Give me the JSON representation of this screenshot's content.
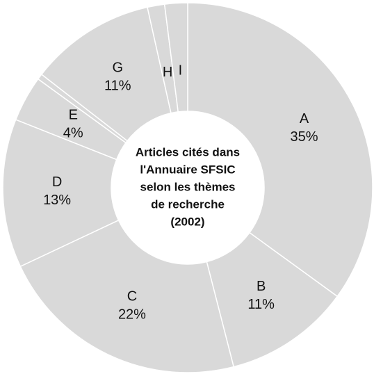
{
  "chart_data": {
    "type": "donut",
    "title": [
      "Articles cités dans",
      "l'Annuaire SFSIC",
      "selon les thèmes",
      "de recherche",
      "(2002)"
    ],
    "categories": [
      "A",
      "B",
      "C",
      "D",
      "E",
      null,
      "G",
      "H",
      "I"
    ],
    "values": [
      35,
      11,
      22,
      13,
      4,
      0.5,
      11,
      1.5,
      2
    ],
    "value_labels": [
      "35%",
      "11%",
      "22%",
      "13%",
      "4%",
      null,
      "11%",
      null,
      null
    ],
    "color": "#d9d9d9"
  }
}
